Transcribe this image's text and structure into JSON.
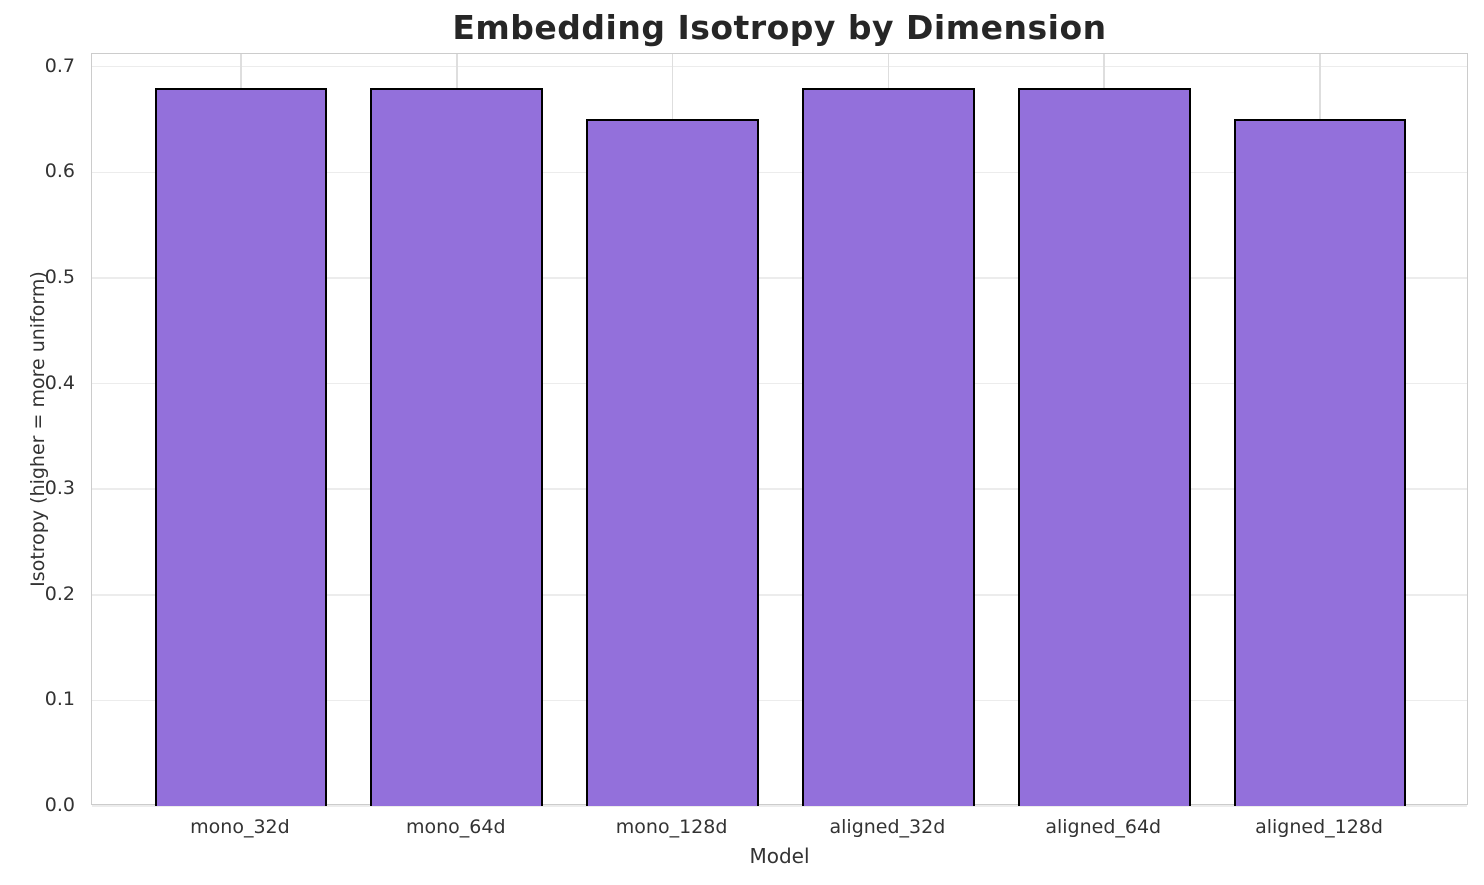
{
  "chart_data": {
    "type": "bar",
    "title": "Embedding Isotropy by Dimension",
    "xlabel": "Model",
    "ylabel": "Isotropy (higher = more uniform)",
    "categories": [
      "mono_32d",
      "mono_64d",
      "mono_128d",
      "aligned_32d",
      "aligned_64d",
      "aligned_128d"
    ],
    "values": [
      0.68,
      0.68,
      0.65,
      0.68,
      0.68,
      0.65
    ],
    "ylim": [
      0,
      0.712
    ],
    "yticks": [
      {
        "label": "0.0",
        "value": 0.0
      },
      {
        "label": "0.1",
        "value": 0.1
      },
      {
        "label": "0.2",
        "value": 0.2
      },
      {
        "label": "0.3",
        "value": 0.3
      },
      {
        "label": "0.4",
        "value": 0.4
      },
      {
        "label": "0.5",
        "value": 0.5
      },
      {
        "label": "0.6",
        "value": 0.6
      },
      {
        "label": "0.7",
        "value": 0.7
      }
    ],
    "grid": "both",
    "legend": "none"
  },
  "colors": {
    "background": "#ffffff",
    "bar_fill": "#9370DB",
    "bar_edge": "#000000",
    "grid_line": "#ececec",
    "vertical_grid_line": "#dedede",
    "axis_spine": "#cccccc",
    "title_text": "#262626",
    "tick_text": "#333333"
  }
}
